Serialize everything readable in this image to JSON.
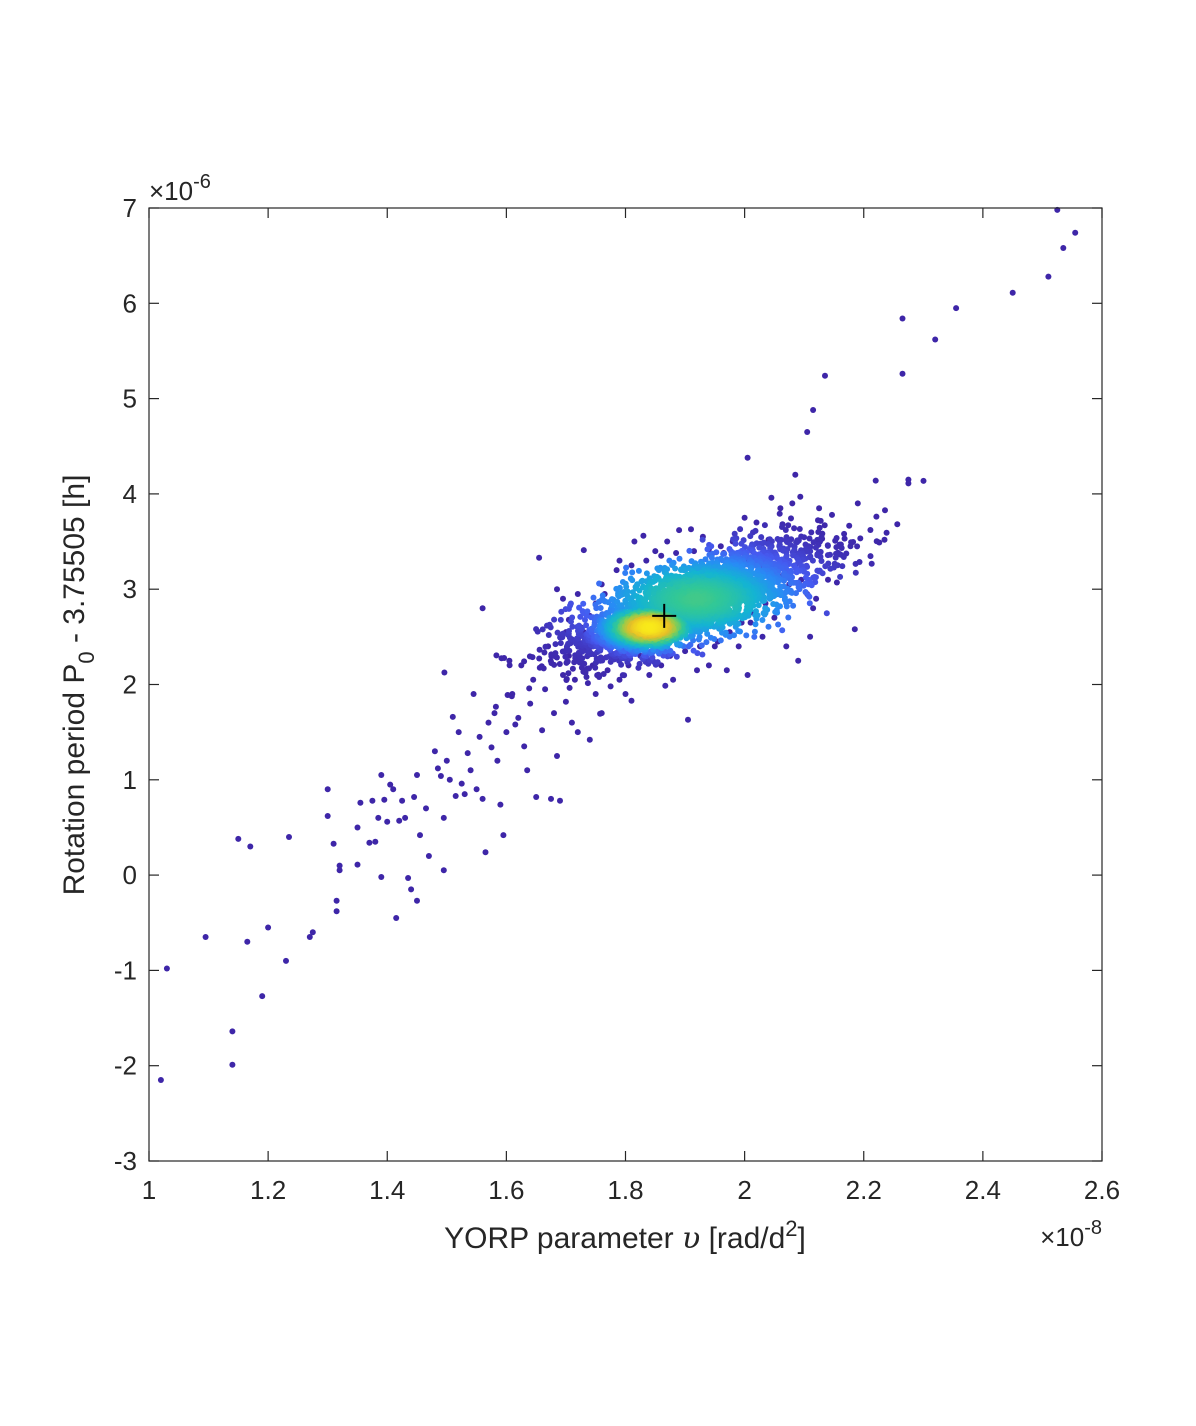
{
  "chart_data": {
    "type": "scatter",
    "title": "",
    "xlabel": {
      "prefix": "YORP parameter ",
      "symbol": "υ",
      "suffix": " [rad/d",
      "sup": "2",
      "close": "]"
    },
    "ylabel": {
      "prefix": "Rotation period P",
      "sub": "0",
      "suffix": " - 3.75505 [h]"
    },
    "x_multiplier": {
      "base": "×10",
      "exp": "-8"
    },
    "y_multiplier": {
      "base": "×10",
      "exp": "-6"
    },
    "xlim": [
      1,
      2.6
    ],
    "ylim": [
      -3,
      7
    ],
    "xticks": [
      1,
      1.2,
      1.4,
      1.6,
      1.8,
      2,
      2.2,
      2.4,
      2.6
    ],
    "xtick_labels": [
      "1",
      "1.2",
      "1.4",
      "1.6",
      "1.8",
      "2",
      "2.2",
      "2.4",
      "2.6"
    ],
    "yticks": [
      -3,
      -2,
      -1,
      0,
      1,
      2,
      3,
      4,
      5,
      6,
      7
    ],
    "ytick_labels": [
      "-3",
      "-2",
      "-1",
      "0",
      "1",
      "2",
      "3",
      "4",
      "5",
      "6",
      "7"
    ],
    "grid": false,
    "colormap": "parula (point density)",
    "colors": {
      "low_density": "#3e26a8",
      "mid_density": "#12b8c8",
      "high_density": "#f9e91a",
      "marker": "#000000",
      "axis": "#262626"
    },
    "best_fit_marker": {
      "x": 1.865,
      "y": 2.72,
      "symbol": "+"
    },
    "points": [
      [
        1.02,
        -2.15
      ],
      [
        1.03,
        -0.98
      ],
      [
        1.095,
        -0.65
      ],
      [
        1.14,
        -1.64
      ],
      [
        1.14,
        -1.99
      ],
      [
        1.15,
        0.38
      ],
      [
        1.165,
        -0.7
      ],
      [
        1.17,
        0.3
      ],
      [
        1.19,
        -1.27
      ],
      [
        1.2,
        -0.55
      ],
      [
        1.23,
        -0.9
      ],
      [
        1.235,
        0.4
      ],
      [
        1.27,
        -0.65
      ],
      [
        1.275,
        -0.6
      ],
      [
        1.3,
        0.9
      ],
      [
        1.3,
        0.62
      ],
      [
        1.31,
        0.33
      ],
      [
        1.315,
        -0.27
      ],
      [
        1.315,
        -0.38
      ],
      [
        1.32,
        0.05
      ],
      [
        1.32,
        0.1
      ],
      [
        1.35,
        0.11
      ],
      [
        1.35,
        0.5
      ],
      [
        1.355,
        0.76
      ],
      [
        1.37,
        0.34
      ],
      [
        1.375,
        0.78
      ],
      [
        1.38,
        0.35
      ],
      [
        1.385,
        0.6
      ],
      [
        1.39,
        1.05
      ],
      [
        1.39,
        -0.02
      ],
      [
        1.395,
        0.79
      ],
      [
        1.4,
        0.56
      ],
      [
        1.405,
        0.95
      ],
      [
        1.41,
        0.9
      ],
      [
        1.415,
        -0.45
      ],
      [
        1.42,
        0.57
      ],
      [
        1.425,
        0.78
      ],
      [
        1.43,
        0.6
      ],
      [
        1.435,
        -0.03
      ],
      [
        1.44,
        -0.15
      ],
      [
        1.445,
        0.82
      ],
      [
        1.45,
        -0.27
      ],
      [
        1.45,
        1.05
      ],
      [
        1.455,
        0.42
      ],
      [
        1.465,
        0.7
      ],
      [
        1.47,
        0.2
      ],
      [
        1.48,
        1.3
      ],
      [
        1.485,
        1.12
      ],
      [
        1.49,
        1.04
      ],
      [
        1.495,
        0.05
      ],
      [
        1.495,
        0.6
      ],
      [
        1.5,
        1.2
      ],
      [
        1.505,
        1.0
      ],
      [
        1.51,
        1.66
      ],
      [
        1.515,
        0.83
      ],
      [
        1.52,
        1.5
      ],
      [
        1.525,
        0.96
      ],
      [
        1.53,
        0.85
      ],
      [
        1.535,
        1.28
      ],
      [
        1.54,
        1.1
      ],
      [
        1.545,
        1.9
      ],
      [
        1.55,
        0.9
      ],
      [
        1.555,
        1.45
      ],
      [
        1.56,
        0.8
      ],
      [
        1.56,
        2.8
      ],
      [
        1.565,
        0.24
      ],
      [
        1.57,
        1.6
      ],
      [
        1.575,
        1.34
      ],
      [
        1.58,
        1.7
      ],
      [
        1.585,
        1.2
      ],
      [
        1.59,
        0.74
      ],
      [
        1.595,
        0.42
      ],
      [
        1.6,
        1.5
      ],
      [
        1.605,
        2.25
      ],
      [
        1.61,
        1.9
      ],
      [
        1.615,
        1.58
      ],
      [
        1.62,
        1.65
      ],
      [
        1.625,
        2.2
      ],
      [
        1.63,
        1.35
      ],
      [
        1.635,
        1.1
      ],
      [
        1.64,
        1.8
      ],
      [
        1.645,
        2.05
      ],
      [
        1.65,
        0.82
      ],
      [
        1.655,
        3.33
      ],
      [
        1.66,
        1.52
      ],
      [
        1.665,
        1.95
      ],
      [
        1.67,
        2.4
      ],
      [
        1.675,
        0.8
      ],
      [
        1.68,
        1.7
      ],
      [
        1.685,
        1.25
      ],
      [
        1.69,
        0.78
      ],
      [
        1.695,
        2.1
      ],
      [
        1.7,
        1.82
      ],
      [
        1.705,
        2.3
      ],
      [
        1.71,
        1.6
      ],
      [
        1.715,
        2.05
      ],
      [
        1.72,
        1.5
      ],
      [
        1.725,
        2.6
      ],
      [
        1.73,
        3.41
      ],
      [
        1.74,
        1.42
      ],
      [
        1.745,
        2.2
      ],
      [
        1.75,
        1.9
      ],
      [
        1.755,
        2.5
      ],
      [
        1.76,
        1.7
      ],
      [
        1.765,
        2.95
      ],
      [
        1.77,
        2.15
      ],
      [
        1.775,
        1.98
      ],
      [
        1.78,
        2.3
      ],
      [
        1.785,
        3.2
      ],
      [
        1.79,
        2.05
      ],
      [
        1.8,
        1.9
      ],
      [
        1.805,
        2.2
      ],
      [
        1.81,
        1.83
      ],
      [
        1.815,
        3.5
      ],
      [
        1.82,
        2.4
      ],
      [
        1.83,
        3.56
      ],
      [
        1.84,
        2.1
      ],
      [
        1.85,
        3.4
      ],
      [
        1.86,
        2.2
      ],
      [
        1.87,
        3.5
      ],
      [
        1.88,
        2.05
      ],
      [
        1.89,
        3.62
      ],
      [
        1.905,
        1.63
      ],
      [
        1.91,
        3.63
      ],
      [
        1.92,
        2.15
      ],
      [
        1.93,
        3.55
      ],
      [
        1.94,
        2.2
      ],
      [
        1.95,
        2.4
      ],
      [
        1.96,
        3.45
      ],
      [
        1.97,
        2.15
      ],
      [
        1.98,
        3.5
      ],
      [
        1.99,
        2.4
      ],
      [
        2.0,
        3.75
      ],
      [
        2.005,
        2.1
      ],
      [
        2.005,
        4.38
      ],
      [
        2.01,
        2.65
      ],
      [
        2.02,
        3.7
      ],
      [
        2.03,
        2.5
      ],
      [
        2.04,
        3.52
      ],
      [
        2.045,
        3.96
      ],
      [
        2.05,
        2.7
      ],
      [
        2.06,
        3.85
      ],
      [
        2.07,
        2.4
      ],
      [
        2.08,
        3.9
      ],
      [
        2.085,
        4.2
      ],
      [
        2.09,
        2.25
      ],
      [
        2.1,
        3.32
      ],
      [
        2.105,
        4.65
      ],
      [
        2.11,
        2.5
      ],
      [
        2.115,
        4.88
      ],
      [
        2.12,
        2.9
      ],
      [
        2.125,
        3.85
      ],
      [
        2.13,
        3.53
      ],
      [
        2.135,
        5.24
      ],
      [
        2.14,
        3.1
      ],
      [
        2.155,
        3.07
      ],
      [
        2.185,
        2.58
      ],
      [
        2.19,
        3.9
      ],
      [
        2.22,
        4.14
      ],
      [
        2.265,
        5.84
      ],
      [
        2.265,
        5.26
      ],
      [
        2.275,
        4.15
      ],
      [
        2.275,
        4.11
      ],
      [
        2.32,
        5.62
      ],
      [
        2.355,
        5.95
      ],
      [
        2.45,
        6.11
      ],
      [
        2.51,
        6.28
      ],
      [
        2.525,
        6.98
      ],
      [
        2.535,
        6.58
      ],
      [
        2.555,
        6.74
      ],
      [
        1.72,
        2.95
      ],
      [
        1.74,
        2.72
      ],
      [
        1.75,
        2.85
      ],
      [
        1.76,
        3.05
      ],
      [
        1.77,
        2.6
      ],
      [
        1.78,
        2.45
      ],
      [
        1.79,
        3.3
      ],
      [
        1.8,
        2.35
      ],
      [
        1.81,
        3.25
      ],
      [
        1.825,
        2.3
      ],
      [
        1.835,
        3.3
      ],
      [
        1.845,
        2.28
      ],
      [
        1.86,
        3.35
      ],
      [
        1.875,
        2.3
      ],
      [
        1.885,
        3.38
      ],
      [
        1.9,
        2.35
      ],
      [
        1.915,
        3.4
      ],
      [
        1.925,
        2.4
      ],
      [
        1.94,
        3.42
      ],
      [
        1.955,
        2.45
      ],
      [
        1.965,
        3.38
      ],
      [
        1.975,
        2.55
      ],
      [
        1.985,
        3.35
      ],
      [
        1.995,
        2.65
      ],
      [
        2.005,
        3.3
      ],
      [
        2.015,
        2.75
      ],
      [
        2.025,
        3.25
      ],
      [
        2.035,
        2.85
      ],
      [
        2.045,
        3.2
      ],
      [
        2.055,
        2.95
      ],
      [
        2.065,
        3.15
      ],
      [
        2.075,
        3.05
      ],
      [
        2.085,
        3.25
      ],
      [
        2.095,
        3.1
      ],
      [
        2.105,
        2.95
      ],
      [
        2.115,
        2.8
      ],
      [
        1.73,
        2.55
      ],
      [
        1.745,
        2.4
      ],
      [
        1.695,
        2.9
      ],
      [
        1.705,
        2.68
      ],
      [
        1.685,
        3.0
      ],
      [
        1.7,
        2.55
      ]
    ],
    "density_clusters": [
      {
        "x": 1.92,
        "y": 2.9,
        "sx": 0.105,
        "sy": 0.3,
        "rho": 0.72,
        "n": 2600
      },
      {
        "x": 1.84,
        "y": 2.6,
        "sx": 0.045,
        "sy": 0.14,
        "rho": 0.6,
        "n": 900
      }
    ]
  }
}
